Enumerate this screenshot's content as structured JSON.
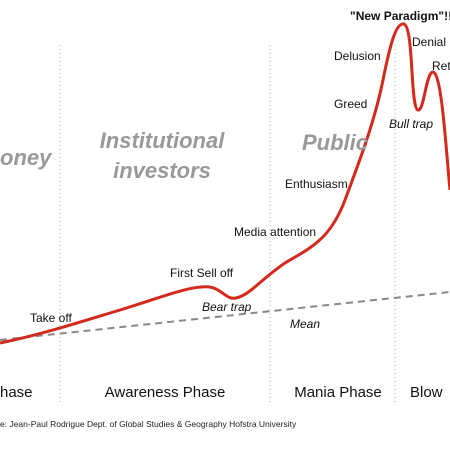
{
  "zones": [
    "oney",
    "Institutional",
    "investors",
    "Public"
  ],
  "annotations": {
    "new_paradigm": "\"New Paradigm\"!!",
    "delusion": "Delusion",
    "denial": "Denial",
    "return": "Ret",
    "greed": "Greed",
    "bull_trap": "Bull trap",
    "enthusiasm": "Enthusiasm",
    "media_attention": "Media attention",
    "first_sell_off": "First Sell off",
    "bear_trap": "Bear trap",
    "take_off": "Take off",
    "mean": "Mean"
  },
  "phases": [
    "hase",
    "Awareness Phase",
    "Mania Phase",
    "Blow"
  ],
  "source": "e: Jean-Paul Rodrigue Dept. of Global Studies & Geography Hofstra University"
}
